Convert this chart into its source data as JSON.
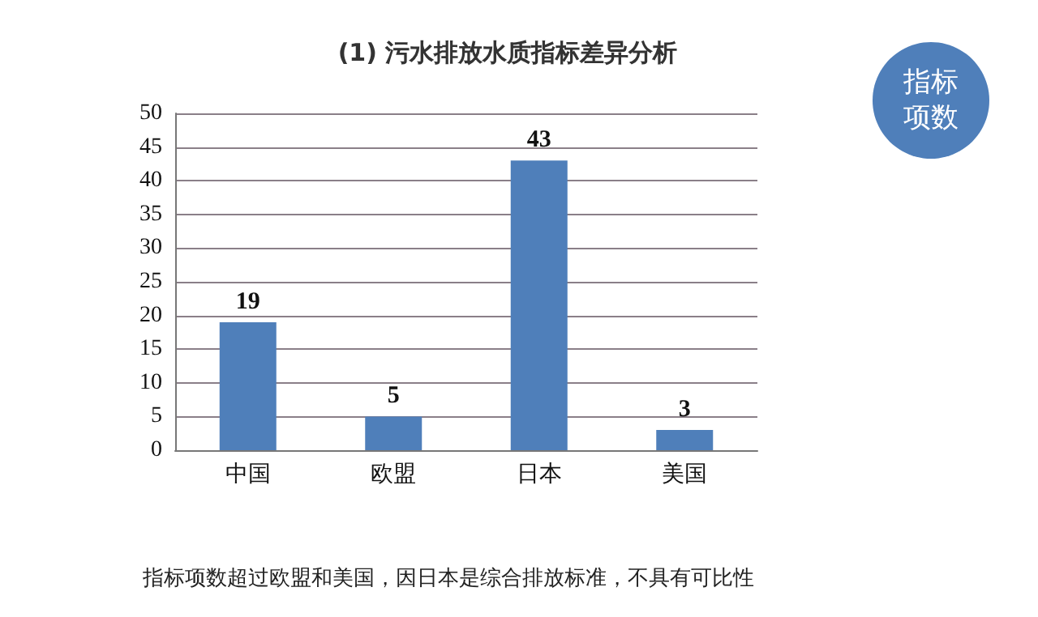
{
  "chart_data": {
    "type": "bar",
    "title": "(1) 污水排放水质指标差异分析",
    "categories": [
      "中国",
      "欧盟",
      "日本",
      "美国"
    ],
    "values": [
      19,
      5,
      43,
      3
    ],
    "color": "#4f7fba",
    "data_labels": true,
    "ylim": [
      0,
      50
    ],
    "yticks": [
      0,
      5,
      10,
      15,
      20,
      25,
      30,
      35,
      40,
      45,
      50
    ],
    "grid": "y",
    "annotations": [
      "指标项数",
      "指标项数超过欧盟和美国，因日本是综合排放标准，不具有可比性"
    ]
  }
}
